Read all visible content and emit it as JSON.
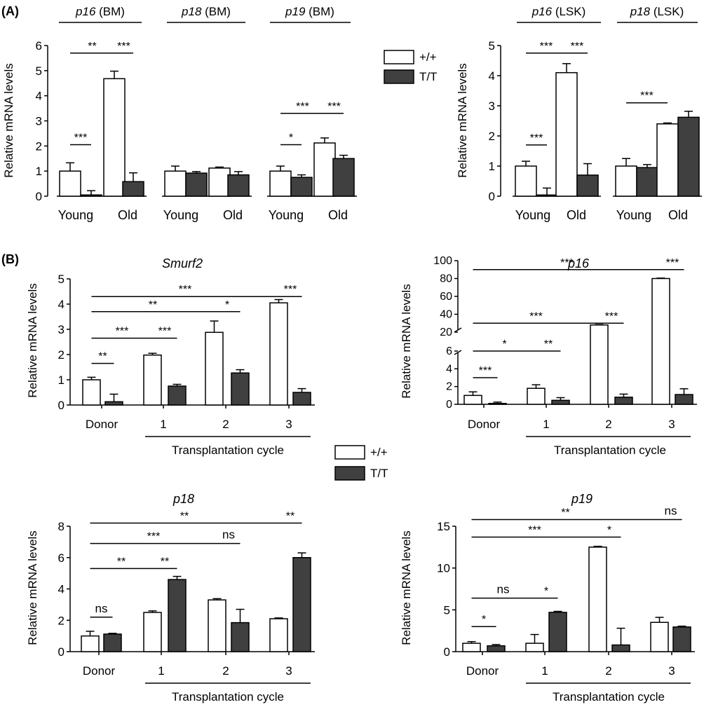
{
  "panel_labels": {
    "a": "(A)",
    "b": "(B)"
  },
  "legend": {
    "wt_label": "+/+",
    "mut_label": "T/T",
    "wt_color": "#ffffff",
    "mut_color": "#404040"
  },
  "chart_data": [
    {
      "id": "a_bm",
      "type": "bar",
      "panel": "(A)",
      "ylabel": "Relative mRNA levels",
      "ylim": [
        0,
        6
      ],
      "yticks": [
        0,
        1,
        2,
        3,
        4,
        5,
        6
      ],
      "series_names": [
        "+/+",
        "T/T"
      ],
      "groups": [
        {
          "gene": "p16",
          "tissue": "(BM)",
          "x_labels": [
            "Young",
            "Old"
          ],
          "pairs": [
            {
              "values": [
                1.0,
                0.05
              ],
              "errors": [
                0.33,
                0.17
              ]
            },
            {
              "values": [
                4.68,
                0.58
              ],
              "errors": [
                0.3,
                0.35
              ]
            }
          ]
        },
        {
          "gene": "p18",
          "tissue": "(BM)",
          "x_labels": [
            "Young",
            "Old"
          ],
          "pairs": [
            {
              "values": [
                1.0,
                0.92
              ],
              "errors": [
                0.2,
                0.06
              ]
            },
            {
              "values": [
                1.12,
                0.85
              ],
              "errors": [
                0.04,
                0.13
              ]
            }
          ]
        },
        {
          "gene": "p19",
          "tissue": "(BM)",
          "x_labels": [
            "Young",
            "Old"
          ],
          "pairs": [
            {
              "values": [
                1.0,
                0.75
              ],
              "errors": [
                0.2,
                0.1
              ]
            },
            {
              "values": [
                2.12,
                1.5
              ],
              "errors": [
                0.2,
                0.13
              ]
            }
          ]
        }
      ],
      "annotations": [
        {
          "text": "**",
          "from": [
            0,
            0
          ],
          "to": [
            0,
            2
          ],
          "level": 5.7
        },
        {
          "text": "***",
          "from": [
            0,
            2
          ],
          "to": [
            0,
            3
          ],
          "level": 5.7
        },
        {
          "text": "***",
          "from": [
            0,
            0
          ],
          "to": [
            0,
            1
          ],
          "level": 2.05
        },
        {
          "text": "***",
          "from": [
            2,
            0
          ],
          "to": [
            2,
            2
          ],
          "level": 3.3
        },
        {
          "text": "***",
          "from": [
            2,
            2
          ],
          "to": [
            2,
            3
          ],
          "level": 3.3
        },
        {
          "text": "*",
          "from": [
            2,
            0
          ],
          "to": [
            2,
            1
          ],
          "level": 2.05
        }
      ]
    },
    {
      "id": "a_lsk",
      "type": "bar",
      "panel": "(A)",
      "ylabel": "Relative mRNA levels",
      "ylim": [
        0,
        5
      ],
      "yticks": [
        0,
        1,
        2,
        3,
        4,
        5
      ],
      "series_names": [
        "+/+",
        "T/T"
      ],
      "groups": [
        {
          "gene": "p16",
          "tissue": "(LSK)",
          "x_labels": [
            "Young",
            "Old"
          ],
          "pairs": [
            {
              "values": [
                1.0,
                0.04
              ],
              "errors": [
                0.16,
                0.23
              ]
            },
            {
              "values": [
                4.1,
                0.7
              ],
              "errors": [
                0.3,
                0.38
              ]
            }
          ]
        },
        {
          "gene": "p18",
          "tissue": "(LSK)",
          "x_labels": [
            "Young",
            "Old"
          ],
          "pairs": [
            {
              "values": [
                1.0,
                0.95
              ],
              "errors": [
                0.25,
                0.1
              ]
            },
            {
              "values": [
                2.4,
                2.62
              ],
              "errors": [
                0.03,
                0.2
              ]
            }
          ]
        }
      ],
      "annotations": [
        {
          "text": "***",
          "from": [
            0,
            0
          ],
          "to": [
            0,
            2
          ],
          "level": 4.75
        },
        {
          "text": "***",
          "from": [
            0,
            2
          ],
          "to": [
            0,
            3
          ],
          "level": 4.75
        },
        {
          "text": "***",
          "from": [
            0,
            0
          ],
          "to": [
            0,
            1
          ],
          "level": 1.7
        },
        {
          "text": "***",
          "from": [
            1,
            0
          ],
          "to": [
            1,
            2
          ],
          "level": 3.1
        }
      ]
    },
    {
      "id": "b_smurf2",
      "type": "bar",
      "panel": "(B)",
      "title": "Smurf2",
      "ylabel": "Relative mRNA levels",
      "xlabel": "Transplantation cycle",
      "ylim": [
        0,
        5
      ],
      "yticks": [
        0,
        1,
        2,
        3,
        4,
        5
      ],
      "categories": [
        "Donor",
        "1",
        "2",
        "3"
      ],
      "series_names": [
        "+/+",
        "T/T"
      ],
      "values": [
        [
          1.0,
          0.13
        ],
        [
          1.98,
          0.75
        ],
        [
          2.88,
          1.27
        ],
        [
          4.05,
          0.5
        ]
      ],
      "errors": [
        [
          0.1,
          0.3
        ],
        [
          0.07,
          0.07
        ],
        [
          0.45,
          0.13
        ],
        [
          0.13,
          0.15
        ]
      ],
      "annotations": [
        {
          "text": "***",
          "from": [
            0,
            0
          ],
          "to": [
            3,
            0
          ],
          "level": 4.3
        },
        {
          "text": "**",
          "from": [
            0,
            0
          ],
          "to": [
            2,
            0
          ],
          "level": 3.7
        },
        {
          "text": "***",
          "from": [
            0,
            0
          ],
          "to": [
            1,
            0
          ],
          "level": 2.65
        },
        {
          "text": "**",
          "from": [
            0,
            0
          ],
          "to": [
            0,
            1
          ],
          "level": 1.65
        },
        {
          "text": "***",
          "from": [
            1,
            0
          ],
          "to": [
            1,
            1
          ],
          "level": 2.65
        },
        {
          "text": "*",
          "from": [
            2,
            0
          ],
          "to": [
            2,
            1
          ],
          "level": 3.7
        },
        {
          "text": "***",
          "from": [
            3,
            0
          ],
          "to": [
            3,
            1
          ],
          "level": 4.3
        }
      ]
    },
    {
      "id": "b_p16",
      "type": "bar",
      "panel": "(B)",
      "title": "p16",
      "ylabel": "Relative mRNA levels",
      "xlabel": "Transplantation cycle",
      "scale": "broken",
      "ylim": [
        0,
        100
      ],
      "ytick_labels": [
        "0",
        "2",
        "4",
        "6",
        "20",
        "40",
        "60",
        "80",
        "100"
      ],
      "categories": [
        "Donor",
        "1",
        "2",
        "3"
      ],
      "series_names": [
        "+/+",
        "T/T"
      ],
      "values": [
        [
          1.0,
          0.1
        ],
        [
          1.8,
          0.45
        ],
        [
          28,
          0.8
        ],
        [
          80,
          1.1
        ]
      ],
      "errors": [
        [
          0.4,
          0.15
        ],
        [
          0.4,
          0.3
        ],
        [
          0.5,
          0.35
        ],
        [
          0.5,
          0.65
        ]
      ],
      "annotations": [
        {
          "text": "***",
          "from": [
            0,
            0
          ],
          "to": [
            3,
            0
          ],
          "level": 90
        },
        {
          "text": "***",
          "from": [
            0,
            0
          ],
          "to": [
            2,
            0
          ],
          "level": 30
        },
        {
          "text": "*",
          "from": [
            0,
            0
          ],
          "to": [
            1,
            0
          ],
          "level": 7.0
        },
        {
          "text": "***",
          "from": [
            0,
            0
          ],
          "to": [
            0,
            1
          ],
          "level": 3.0
        },
        {
          "text": "**",
          "from": [
            1,
            0
          ],
          "to": [
            1,
            1
          ],
          "level": 7.0
        },
        {
          "text": "***",
          "from": [
            2,
            0
          ],
          "to": [
            2,
            1
          ],
          "level": 30
        },
        {
          "text": "***",
          "from": [
            3,
            0
          ],
          "to": [
            3,
            1
          ],
          "level": 90
        }
      ]
    },
    {
      "id": "b_p18",
      "type": "bar",
      "panel": "(B)",
      "title": "p18",
      "ylabel": "Relative mRNA levels",
      "xlabel": "Transplantation cycle",
      "ylim": [
        0,
        8
      ],
      "yticks": [
        0,
        2,
        4,
        6,
        8
      ],
      "categories": [
        "Donor",
        "1",
        "2",
        "3"
      ],
      "series_names": [
        "+/+",
        "T/T"
      ],
      "values": [
        [
          1.0,
          1.12
        ],
        [
          2.5,
          4.6
        ],
        [
          3.3,
          1.85
        ],
        [
          2.1,
          6.0
        ]
      ],
      "errors": [
        [
          0.3,
          0.05
        ],
        [
          0.1,
          0.2
        ],
        [
          0.08,
          0.85
        ],
        [
          0.05,
          0.3
        ]
      ],
      "annotations": [
        {
          "text": "**",
          "from": [
            0,
            0
          ],
          "to": [
            3,
            0
          ],
          "level": 8.2
        },
        {
          "text": "***",
          "from": [
            0,
            0
          ],
          "to": [
            2,
            0
          ],
          "level": 6.9
        },
        {
          "text": "**",
          "from": [
            0,
            0
          ],
          "to": [
            1,
            0
          ],
          "level": 5.3
        },
        {
          "text": "ns",
          "from": [
            0,
            0
          ],
          "to": [
            0,
            1
          ],
          "level": 2.2
        },
        {
          "text": "**",
          "from": [
            1,
            0
          ],
          "to": [
            1,
            1
          ],
          "level": 5.3
        },
        {
          "text": "ns",
          "from": [
            2,
            0
          ],
          "to": [
            2,
            1
          ],
          "level": 6.9
        },
        {
          "text": "**",
          "from": [
            3,
            0
          ],
          "to": [
            3,
            1
          ],
          "level": 8.2
        }
      ]
    },
    {
      "id": "b_p19",
      "type": "bar",
      "panel": "(B)",
      "title": "p19",
      "ylabel": "Relative mRNA levels",
      "xlabel": "Transplantation cycle",
      "ylim": [
        0,
        15
      ],
      "yticks": [
        0,
        5,
        10,
        15
      ],
      "categories": [
        "Donor",
        "1",
        "2",
        "3"
      ],
      "series_names": [
        "+/+",
        "T/T"
      ],
      "values": [
        [
          1.0,
          0.7
        ],
        [
          1.0,
          4.7
        ],
        [
          12.5,
          0.8
        ],
        [
          3.5,
          2.95
        ]
      ],
      "errors": [
        [
          0.2,
          0.15
        ],
        [
          1.05,
          0.12
        ],
        [
          0.1,
          2.0
        ],
        [
          0.6,
          0.1
        ]
      ],
      "annotations": [
        {
          "text": "**",
          "from": [
            0,
            0
          ],
          "to": [
            3,
            0
          ],
          "level": 15.8
        },
        {
          "text": "***",
          "from": [
            0,
            0
          ],
          "to": [
            2,
            0
          ],
          "level": 13.7
        },
        {
          "text": "ns",
          "from": [
            0,
            0
          ],
          "to": [
            1,
            0
          ],
          "level": 6.4
        },
        {
          "text": "*",
          "from": [
            0,
            0
          ],
          "to": [
            0,
            1
          ],
          "level": 3.0
        },
        {
          "text": "*",
          "from": [
            1,
            0
          ],
          "to": [
            1,
            1
          ],
          "level": 6.4
        },
        {
          "text": "*",
          "from": [
            2,
            0
          ],
          "to": [
            2,
            1
          ],
          "level": 13.7
        },
        {
          "text": "ns",
          "from": [
            3,
            0
          ],
          "to": [
            3,
            1
          ],
          "level": 15.8
        }
      ]
    }
  ]
}
